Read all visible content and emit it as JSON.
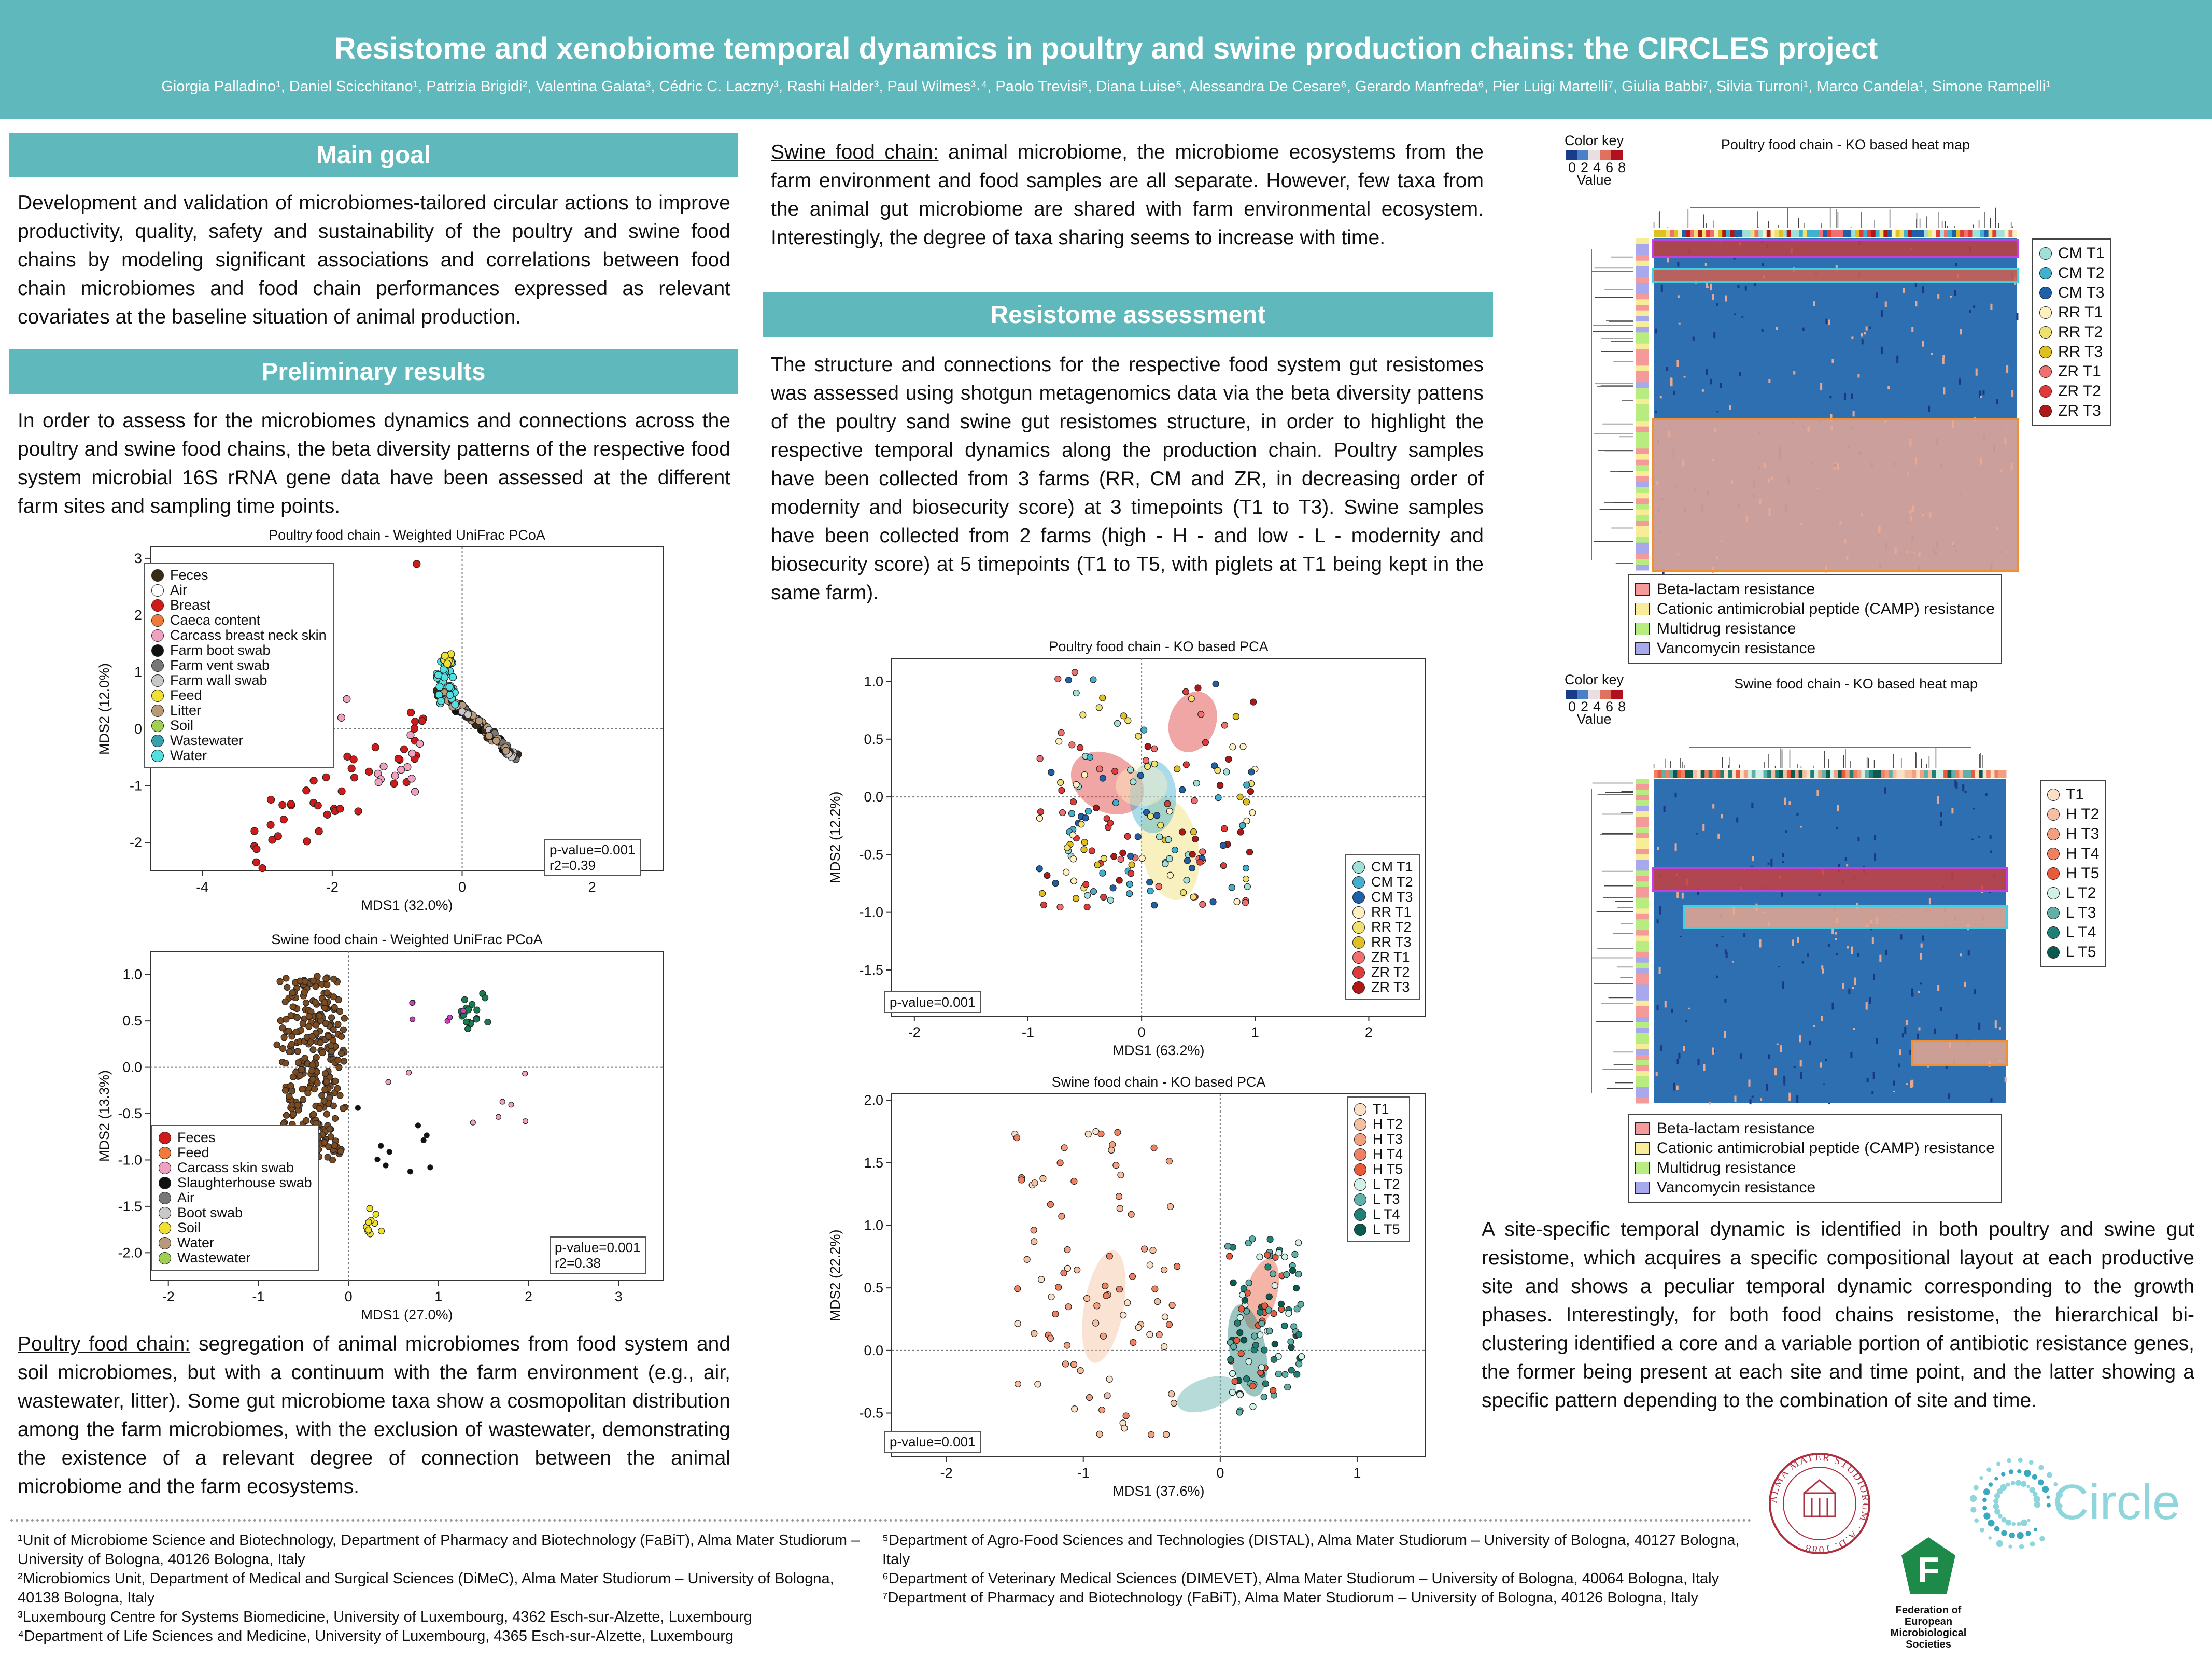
{
  "header": {
    "title": "Resistome and xenobiome temporal dynamics in poultry and swine production chains: the CIRCLES project",
    "authors": "Giorgia Palladino¹, Daniel Scicchitano¹, Patrizia Brigidi², Valentina Galata³, Cédric C. Laczny³, Rashi Halder³, Paul Wilmes³˒⁴, Paolo Trevisi⁵, Diana Luise⁵, Alessandra De Cesare⁶, Gerardo Manfreda⁶, Pier Luigi Martelli⁷, Giulia Babbi⁷, Silvia Turroni¹, Marco Candela¹, Simone Rampelli¹"
  },
  "main_goal": {
    "heading": "Main goal",
    "text": "Development and validation of microbiomes-tailored circular actions to improve productivity, quality, safety and sustainability of the poultry and swine food chains by modeling significant associations and correlations between food chain microbiomes and food chain performances expressed as relevant covariates at the baseline situation of animal production."
  },
  "preliminary": {
    "heading": "Preliminary results",
    "text": "In order to assess for the microbiomes dynamics and connections across the poultry and swine food chains, the beta diversity patterns of the respective food system microbial 16S rRNA gene data have been assessed at the different farm sites and sampling time points.",
    "poultry_label": "Poultry food chain:",
    "poultry_text": " segregation of animal microbiomes from food system and soil microbiomes, but with a continuum with the farm environment (e.g., air, wastewater, litter). Some gut microbiome taxa show a cosmopolitan distribution among the farm microbiomes, with the exclusion of wastewater, demonstrating the existence of a relevant degree of connection between the animal microbiome and the farm ecosystems.",
    "swine_label": "Swine food chain:",
    "swine_text": " animal microbiome, the microbiome ecosystems from the farm environment and food samples are all separate. However, few taxa from the animal gut microbiome are shared with farm environmental ecosystem. Interestingly, the degree of taxa sharing seems to increase with time."
  },
  "resistome": {
    "heading": "Resistome assessment",
    "text": "The structure and connections for the respective food system gut resistomes was assessed using shotgun metagenomics data via the beta diversity pattens of the poultry sand swine gut resistomes structure, in order to highlight the respective temporal dynamics along the production chain. Poultry samples have been collected from 3 farms (RR, CM and ZR, in decreasing order of modernity and biosecurity score) at 3 timepoints (T1 to T3). Swine samples have been collected from 2 farms (high - H - and low - L - modernity and biosecurity score) at 5 timepoints (T1 to T5, with piglets at T1 being kept in the same farm).",
    "conclusion": "A site-specific temporal dynamic is identified in both poultry and swine gut resistome, which acquires a specific compositional layout at each productive site and shows a peculiar temporal dynamic corresponding to the growth phases. Interestingly, for both food chains resistome, the hierarchical bi-clustering identified a core and a variable portion of antibiotic resistance genes, the former being present at each site and time point, and the latter showing a specific pattern depending to the combination of site and time."
  },
  "chart_data": [
    {
      "type": "scatter",
      "title": "Poultry food chain - Weighted UniFrac PCoA",
      "xlabel": "MDS1 (32.0%)",
      "ylabel": "MDS2 (12.0%)",
      "xlim": [
        -4.8,
        3.1
      ],
      "ylim": [
        -2.5,
        3.2
      ],
      "xticks": [
        "-4",
        "-2",
        "0",
        "2"
      ],
      "yticks": [
        "3",
        "2",
        "1",
        "0",
        "-1",
        "-2"
      ],
      "stats": [
        "p-value=0.001",
        "r2=0.39"
      ],
      "legend": [
        "Feces",
        "Air",
        "Breast",
        "Caeca content",
        "Carcass breast neck skin",
        "Farm boot swab",
        "Farm vent swab",
        "Farm wall swab",
        "Feed",
        "Litter",
        "Soil",
        "Wastewater",
        "Water"
      ],
      "colors": [
        "#3a2a1a",
        "#ffffff",
        "#d11a1a",
        "#f07a3a",
        "#f0a0c0",
        "#111111",
        "#777777",
        "#c8c8c8",
        "#f0e030",
        "#b89a7a",
        "#a0d050",
        "#3aa0b0",
        "#50e0e0"
      ]
    },
    {
      "type": "scatter",
      "title": "Swine food chain - Weighted UniFrac PCoA",
      "xlabel": "MDS1 (27.0%)",
      "ylabel": "MDS2 (13.3%)",
      "xlim": [
        -2.2,
        3.5
      ],
      "ylim": [
        -2.3,
        1.25
      ],
      "xticks": [
        "-2",
        "-1",
        "0",
        "1",
        "2",
        "3"
      ],
      "yticks": [
        "1.0",
        "0.5",
        "0.0",
        "-0.5",
        "-1.0",
        "-1.5",
        "-2.0"
      ],
      "stats": [
        "p-value=0.001",
        "r2=0.38"
      ],
      "legend": [
        "Feces",
        "Feed",
        "Carcass skin swab",
        "Slaughterhouse swab",
        "Air",
        "Boot swab",
        "Soil",
        "Water",
        "Wastewater"
      ],
      "colors": [
        "#d11a1a",
        "#f07a3a",
        "#f0a0c0",
        "#111111",
        "#777777",
        "#c8c8c8",
        "#f0e030",
        "#b89a7a",
        "#a0d050"
      ]
    },
    {
      "type": "scatter",
      "title": "Poultry food chain - KO based PCA",
      "xlabel": "MDS1 (63.2%)",
      "ylabel": "MDS2 (12.2%)",
      "xlim": [
        -2.2,
        2.5
      ],
      "ylim": [
        -1.9,
        1.2
      ],
      "xticks": [
        "-2",
        "-1",
        "0",
        "1",
        "2"
      ],
      "yticks": [
        "1.0",
        "0.5",
        "0.0",
        "-0.5",
        "-1.0",
        "-1.5"
      ],
      "stats": [
        "p-value=0.001"
      ],
      "legend": [
        "CM T1",
        "CM T2",
        "CM T3",
        "RR T1",
        "RR T2",
        "RR T3",
        "ZR T1",
        "ZR T2",
        "ZR T3"
      ],
      "colors": [
        "#a0e0d8",
        "#40b0d0",
        "#2060a8",
        "#fff0c0",
        "#f0e070",
        "#e0c020",
        "#f07070",
        "#e03a3a",
        "#b01818"
      ]
    },
    {
      "type": "scatter",
      "title": "Swine food chain - KO based PCA",
      "xlabel": "MDS1 (37.6%)",
      "ylabel": "MDS2 (22.2%)",
      "xlim": [
        -2.4,
        1.5
      ],
      "ylim": [
        -0.85,
        2.05
      ],
      "xticks": [
        "-2",
        "-1",
        "0",
        "1"
      ],
      "yticks": [
        "2.0",
        "1.5",
        "1.0",
        "0.5",
        "0.0",
        "-0.5"
      ],
      "stats": [
        "p-value=0.001"
      ],
      "legend": [
        "T1",
        "H T2",
        "H T3",
        "H T4",
        "H T5",
        "L T2",
        "L T3",
        "L T4",
        "L T5"
      ],
      "colors": [
        "#fbe0c8",
        "#f6c0a0",
        "#f4a080",
        "#f08060",
        "#e85a3a",
        "#d0f0e8",
        "#60b0a8",
        "#208078",
        "#0a5a50"
      ]
    },
    {
      "type": "heatmap",
      "title": "Poultry food chain - KO based heat map",
      "color_key_label": "Color key",
      "value_label": "Value",
      "scale_ticks": [
        "0",
        "2",
        "4",
        "6",
        "8"
      ],
      "legend": [
        "CM T1",
        "CM T2",
        "CM T3",
        "RR T1",
        "RR T2",
        "RR T3",
        "ZR T1",
        "ZR T2",
        "ZR T3"
      ],
      "legend_colors": [
        "#a0e0d8",
        "#40b0d0",
        "#2060a8",
        "#fff0c0",
        "#f0e070",
        "#e0c020",
        "#f07070",
        "#e03a3a",
        "#b01818"
      ],
      "row_annotations": [
        "Beta-lactam resistance",
        "Cationic antimicrobial peptide (CAMP) resistance",
        "Multidrug resistance",
        "Vancomycin resistance"
      ],
      "row_annotation_colors": [
        "#f49a9a",
        "#f7ec98",
        "#b8ec80",
        "#a8a8ec"
      ]
    },
    {
      "type": "heatmap",
      "title": "Swine food chain - KO based heat map",
      "color_key_label": "Color key",
      "value_label": "Value",
      "scale_ticks": [
        "0",
        "2",
        "4",
        "6",
        "8"
      ],
      "legend": [
        "T1",
        "H T2",
        "H T3",
        "H T4",
        "H T5",
        "L T2",
        "L T3",
        "L T4",
        "L T5"
      ],
      "legend_colors": [
        "#fbe0c8",
        "#f6c0a0",
        "#f4a080",
        "#f08060",
        "#e85a3a",
        "#d0f0e8",
        "#60b0a8",
        "#208078",
        "#0a5a50"
      ],
      "row_annotations": [
        "Beta-lactam resistance",
        "Cationic antimicrobial peptide (CAMP) resistance",
        "Multidrug resistance",
        "Vancomycin resistance"
      ],
      "row_annotation_colors": [
        "#f49a9a",
        "#f7ec98",
        "#b8ec80",
        "#a8a8ec"
      ]
    }
  ],
  "footer": {
    "left": [
      "¹Unit of Microbiome Science and Biotechnology, Department of Pharmacy and Biotechnology (FaBiT), Alma Mater Studiorum – University of Bologna, 40126 Bologna, Italy",
      "²Microbiomics Unit, Department of Medical and Surgical Sciences (DiMeC), Alma Mater Studiorum – University of Bologna, 40138 Bologna, Italy",
      "³Luxembourg Centre for Systems Biomedicine, University of Luxembourg, 4362 Esch-sur-Alzette, Luxembourg",
      "⁴Department of Life Sciences and Medicine, University of Luxembourg, 4365 Esch-sur-Alzette, Luxembourg"
    ],
    "right": [
      "⁵Department of Agro-Food Sciences and Technologies (DISTAL), Alma Mater Studiorum – University of Bologna, 40127 Bologna, Italy",
      "⁶Department of Veterinary Medical Sciences (DIMEVET), Alma Mater Studiorum – University of Bologna, 40064 Bologna, Italy",
      "⁷Department of Pharmacy and Biotechnology (FaBiT), Alma Mater Studiorum – University of Bologna, 40126 Bologna, Italy"
    ]
  },
  "logos": {
    "unibo_ring": "ALMA MATER STUDIORUM · A.D. 1088 ·",
    "circles": "Circles",
    "fems_letter": "F",
    "fems_name": "Federation of European Microbiological Societies"
  }
}
